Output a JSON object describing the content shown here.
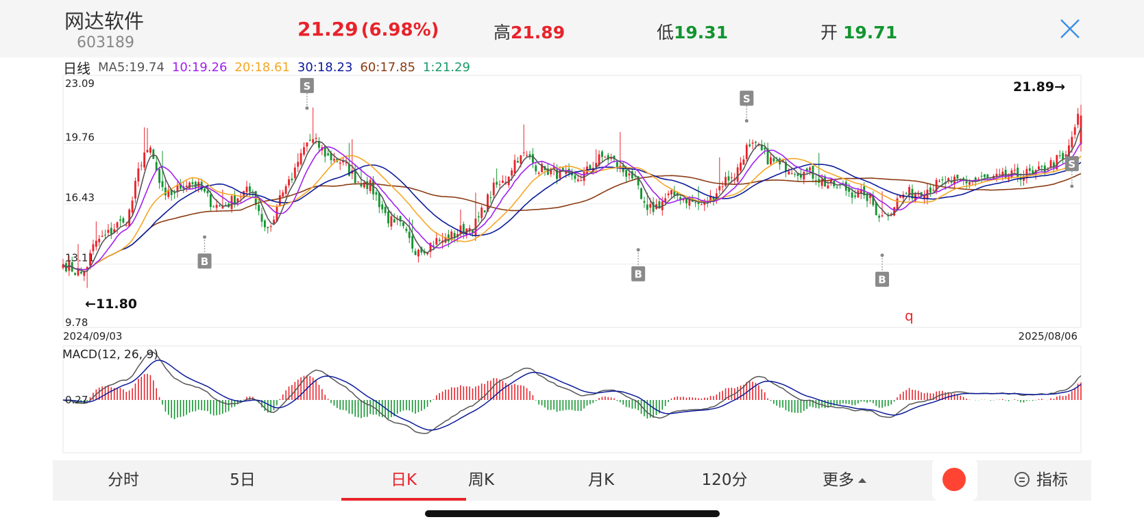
{
  "header": {
    "stock_name": "网达软件",
    "stock_code": "603189",
    "price": "21.29",
    "change_pct": "(6.98%)",
    "high_label": "高",
    "high_value": "21.89",
    "low_label": "低",
    "low_value": "19.31",
    "open_label": "开",
    "open_value": "19.71"
  },
  "ma_legend": {
    "period": "日线",
    "ma5": "MA5:19.74",
    "ma10": "10:19.26",
    "ma20": "20:18.61",
    "ma30": "30:18.23",
    "ma60": "60:17.85",
    "ma1": "1:21.29"
  },
  "colors": {
    "up": "#e8232b",
    "down": "#12952f",
    "ma5": "#555555",
    "ma10": "#a020f0",
    "ma20": "#f5a623",
    "ma30": "#0a1a99",
    "ma60": "#8b3a12",
    "ma1": "#1a9b6a"
  },
  "chart_data": [
    {
      "type": "candlestick",
      "y_ticks": [
        "23.09",
        "19.76",
        "16.43",
        "13.11",
        "9.78"
      ],
      "ylim": [
        9.78,
        23.09
      ],
      "x_start_label": "2024/09/03",
      "x_end_label": "2025/08/06",
      "high_marker": "21.89→",
      "low_marker": "←11.80",
      "annotation": "q",
      "signals": [
        {
          "label": "S",
          "index": 81,
          "price": 21.7
        },
        {
          "label": "B",
          "index": 47,
          "price": 14.6
        },
        {
          "label": "B",
          "index": 191,
          "price": 13.9
        },
        {
          "label": "S",
          "index": 227,
          "price": 21.0
        },
        {
          "label": "B",
          "index": 272,
          "price": 13.6
        },
        {
          "label": "S",
          "index": 335,
          "price": 17.4
        }
      ],
      "anchors": [
        [
          0,
          13.1
        ],
        [
          6,
          12.6
        ],
        [
          12,
          14.5
        ],
        [
          20,
          15.4
        ],
        [
          28,
          19.4
        ],
        [
          34,
          16.9
        ],
        [
          42,
          17.6
        ],
        [
          52,
          16.3
        ],
        [
          62,
          17.1
        ],
        [
          68,
          15.1
        ],
        [
          74,
          17.4
        ],
        [
          82,
          19.9
        ],
        [
          90,
          18.9
        ],
        [
          100,
          17.6
        ],
        [
          110,
          15.4
        ],
        [
          118,
          13.9
        ],
        [
          125,
          14.4
        ],
        [
          135,
          15.1
        ],
        [
          145,
          17.5
        ],
        [
          152,
          19.1
        ],
        [
          160,
          18.3
        ],
        [
          170,
          17.8
        ],
        [
          180,
          19.0
        ],
        [
          188,
          18.1
        ],
        [
          194,
          16.1
        ],
        [
          203,
          16.9
        ],
        [
          212,
          16.4
        ],
        [
          222,
          17.9
        ],
        [
          228,
          19.6
        ],
        [
          238,
          18.6
        ],
        [
          246,
          18.2
        ],
        [
          256,
          17.4
        ],
        [
          266,
          16.9
        ],
        [
          272,
          15.8
        ],
        [
          280,
          17.0
        ],
        [
          295,
          17.6
        ],
        [
          308,
          17.8
        ],
        [
          322,
          18.1
        ],
        [
          332,
          18.9
        ],
        [
          338,
          21.29
        ]
      ],
      "count": 339
    },
    {
      "type": "macd",
      "title": "MACD(12, 26, 9)",
      "zero_label": "0.27",
      "params": [
        12,
        26,
        9
      ]
    }
  ],
  "tabs": [
    {
      "label": "分时"
    },
    {
      "label": "5日"
    },
    {
      "label": "日K"
    },
    {
      "label": "周K"
    },
    {
      "label": "月K"
    },
    {
      "label": "120分"
    },
    {
      "label": "更多"
    }
  ],
  "indicator_label": "指标",
  "active_tab": "日K"
}
